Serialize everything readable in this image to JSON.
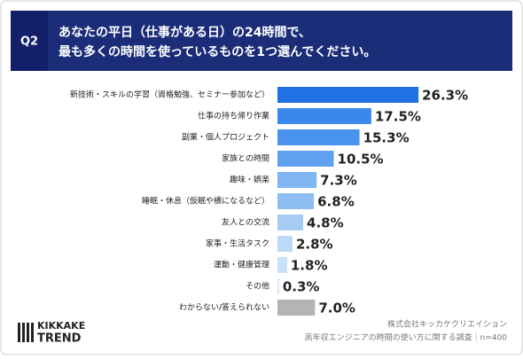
{
  "chart_data": {
    "type": "bar",
    "orientation": "horizontal",
    "question_label": "Q2",
    "title": [
      "あなたの平日（仕事がある日）の24時間で、",
      "最も多くの時間を使っているものを1つ選んでください。"
    ],
    "categories": [
      "新技術・スキルの学習（資格勉強、セミナー参加など）",
      "仕事の持ち帰り作業",
      "副業・個人プロジェクト",
      "家族との時間",
      "趣味・娯楽",
      "睡眠・休息（仮眠や横になるなど）",
      "友人との交流",
      "家事・生活タスク",
      "運動・健康管理",
      "その他",
      "わからない/答えられない"
    ],
    "values": [
      26.3,
      17.5,
      15.3,
      10.5,
      7.3,
      6.8,
      4.8,
      2.8,
      1.8,
      0.3,
      7.0
    ],
    "value_labels": [
      "26.3%",
      "17.5%",
      "15.3%",
      "10.5%",
      "7.3%",
      "6.8%",
      "4.8%",
      "2.8%",
      "1.8%",
      "0.3%",
      "7.0%"
    ],
    "colors": [
      "#1f72e4",
      "#3a88ea",
      "#4a93ec",
      "#5fa1ee",
      "#80b5f1",
      "#8ebdf2",
      "#a6ccf5",
      "#badaf7",
      "#c8e0f8",
      "#d5e7fa",
      "#b4b4b4"
    ],
    "logo": [
      "KIKKAKE",
      "TREND"
    ],
    "source": [
      "株式会社キッカケクリエイション",
      "高年収エンジニアの時間の使い方に関する調査｜n=400"
    ]
  }
}
